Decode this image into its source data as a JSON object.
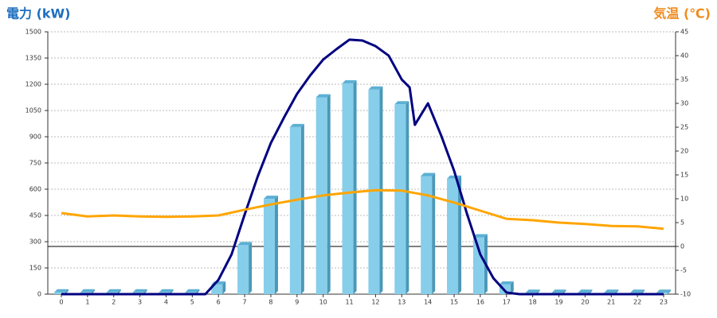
{
  "chart_data": {
    "type": "bar",
    "title_left": "電力 (kW)",
    "title_right": "気温 (℃)",
    "categories": [
      "0",
      "1",
      "2",
      "3",
      "4",
      "5",
      "6",
      "7",
      "8",
      "9",
      "10",
      "11",
      "12",
      "13",
      "14",
      "15",
      "16",
      "17",
      "18",
      "19",
      "20",
      "21",
      "22",
      "23"
    ],
    "values": [
      10,
      10,
      10,
      10,
      10,
      10,
      55,
      280,
      545,
      955,
      1125,
      1205,
      1170,
      1085,
      675,
      660,
      325,
      55,
      8,
      8,
      8,
      8,
      8,
      8
    ],
    "color": "#87ceeb",
    "ylim": [
      0,
      1500
    ],
    "yticks": [
      0,
      150,
      300,
      450,
      600,
      750,
      900,
      1050,
      1200,
      1350,
      1500
    ],
    "y2lim": [
      -10,
      45
    ],
    "y2ticks": [
      -10,
      -5,
      0,
      5,
      10,
      15,
      20,
      25,
      30,
      35,
      40,
      45
    ],
    "grid": true,
    "series": [
      {
        "color": "#000080",
        "axis": "y",
        "x": [
          0,
          1,
          2,
          3,
          4,
          5,
          5.5,
          6,
          6.5,
          7,
          7.5,
          8,
          8.5,
          9,
          9.5,
          10,
          10.5,
          11,
          11.5,
          12,
          12.5,
          13,
          13.3,
          13.5,
          14,
          14.5,
          15,
          15.5,
          16,
          16.5,
          17,
          17.5,
          18,
          19,
          20,
          21,
          22,
          23
        ],
        "values": [
          0,
          0,
          0,
          0,
          0,
          0,
          0,
          82,
          227,
          455,
          673,
          864,
          1009,
          1145,
          1250,
          1341,
          1400,
          1455,
          1450,
          1418,
          1364,
          1227,
          1182,
          968,
          1091,
          909,
          705,
          455,
          227,
          91,
          9,
          0,
          0,
          0,
          0,
          0,
          0,
          0
        ]
      },
      {
        "color": "#ffa500",
        "axis": "y2",
        "x": [
          0,
          1,
          2,
          3,
          4,
          5,
          6,
          7,
          8,
          9,
          10,
          11,
          12,
          13,
          14,
          15,
          16,
          17,
          18,
          19,
          20,
          21,
          22,
          23
        ],
        "values": [
          7.0,
          6.3,
          6.5,
          6.3,
          6.2,
          6.3,
          6.5,
          7.7,
          8.8,
          9.8,
          10.7,
          11.3,
          11.8,
          11.7,
          10.7,
          9.2,
          7.5,
          5.8,
          5.5,
          5.0,
          4.7,
          4.3,
          4.2,
          3.7
        ]
      }
    ]
  }
}
